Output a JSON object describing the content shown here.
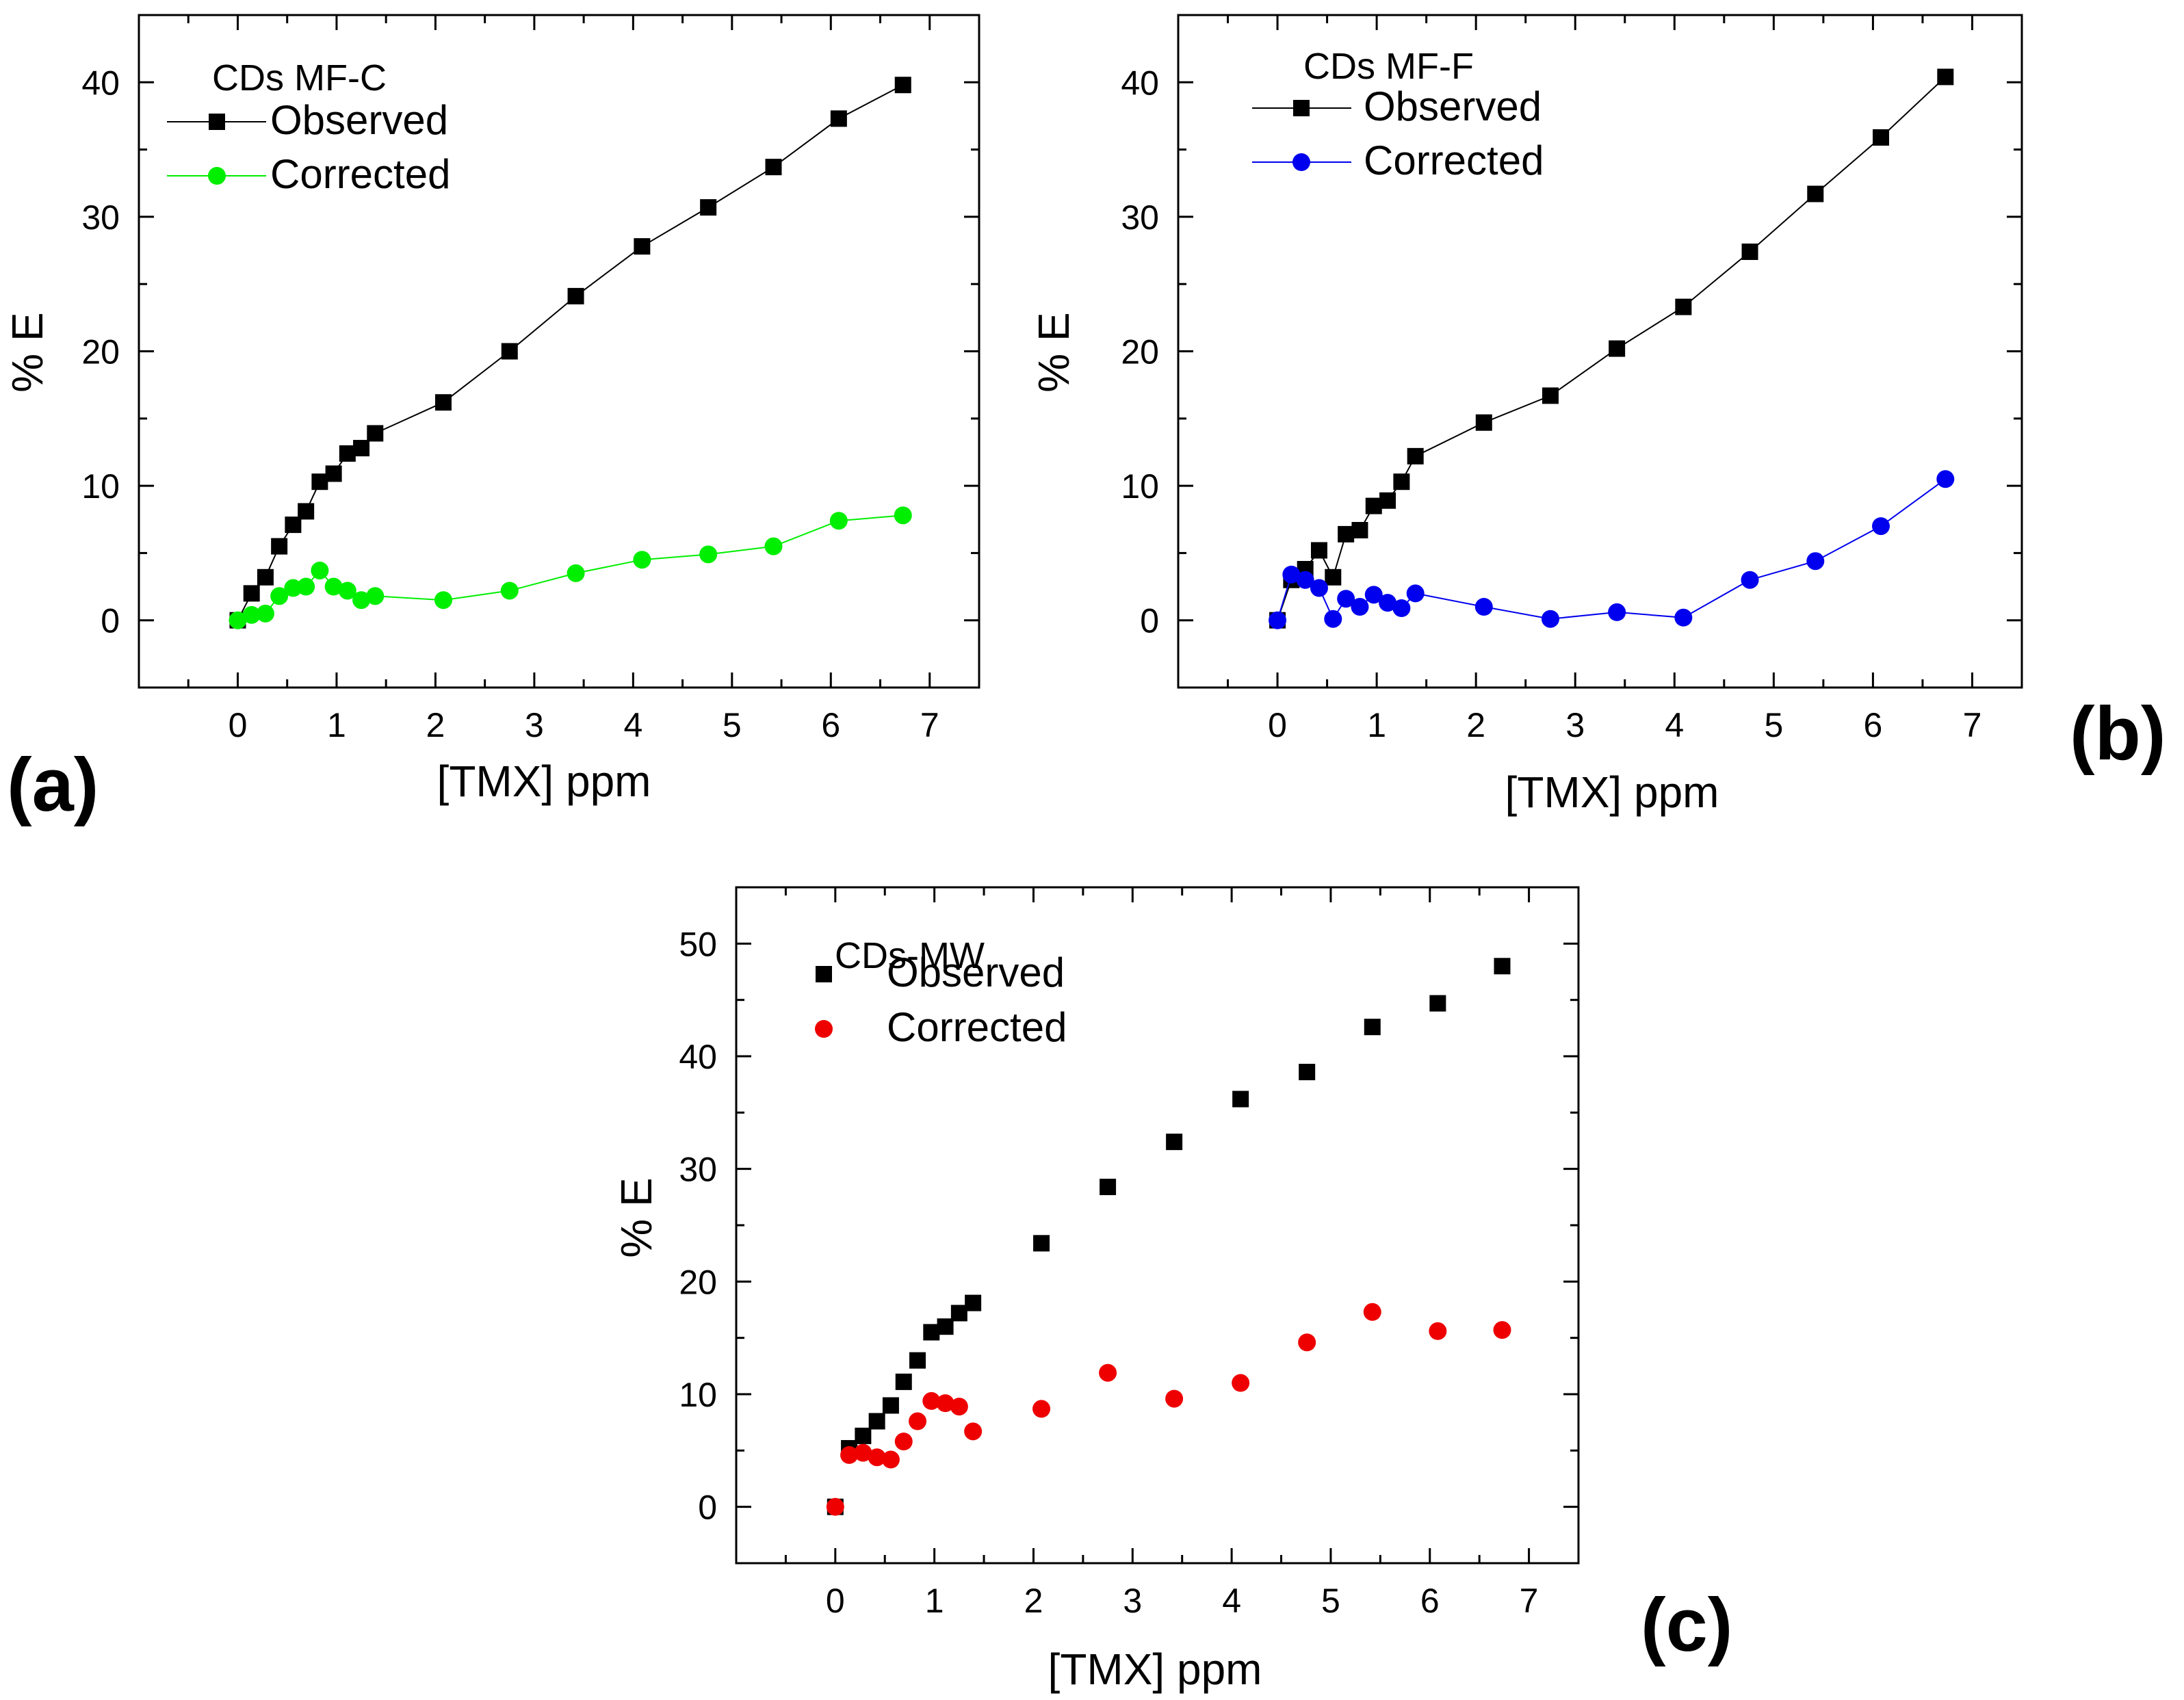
{
  "chart_data": [
    {
      "panel": "(a)",
      "type": "line",
      "legend_title": "CDs MF-C",
      "xlabel": "[TMX] ppm",
      "ylabel": "% E",
      "xlim": [
        -1,
        7.5
      ],
      "ylim": [
        -5,
        45
      ],
      "xticks": [
        0,
        1,
        2,
        3,
        4,
        5,
        6,
        7
      ],
      "yticks": [
        0,
        10,
        20,
        30,
        40
      ],
      "legend_position": "top-left",
      "series": [
        {
          "name": "Observed",
          "marker": "square",
          "color": "#000000",
          "line": true,
          "x": [
            0,
            0.14,
            0.28,
            0.42,
            0.56,
            0.69,
            0.83,
            0.97,
            1.11,
            1.25,
            1.39,
            2.08,
            2.75,
            3.42,
            4.09,
            4.76,
            5.42,
            6.08,
            6.73
          ],
          "y": [
            0,
            2.0,
            3.2,
            5.5,
            7.1,
            8.1,
            10.3,
            10.9,
            12.4,
            12.8,
            13.9,
            16.2,
            20.0,
            24.1,
            27.8,
            30.7,
            33.7,
            37.3,
            39.8
          ]
        },
        {
          "name": "Corrected",
          "marker": "circle",
          "color": "#00ee00",
          "line": true,
          "x": [
            0,
            0.14,
            0.28,
            0.42,
            0.56,
            0.69,
            0.83,
            0.97,
            1.11,
            1.25,
            1.39,
            2.08,
            2.75,
            3.42,
            4.09,
            4.76,
            5.42,
            6.08,
            6.73
          ],
          "y": [
            0,
            0.4,
            0.5,
            1.8,
            2.4,
            2.5,
            3.7,
            2.5,
            2.2,
            1.5,
            1.8,
            1.5,
            2.2,
            3.5,
            4.5,
            4.9,
            5.5,
            7.4,
            7.8
          ]
        }
      ]
    },
    {
      "panel": "(b)",
      "type": "line",
      "legend_title": "CDs MF-F",
      "xlabel": "[TMX] ppm",
      "ylabel": "% E",
      "xlim": [
        -1,
        7.5
      ],
      "ylim": [
        -5,
        45
      ],
      "xticks": [
        0,
        1,
        2,
        3,
        4,
        5,
        6,
        7
      ],
      "yticks": [
        0,
        10,
        20,
        30,
        40
      ],
      "legend_position": "top-left",
      "series": [
        {
          "name": "Observed",
          "marker": "square",
          "color": "#000000",
          "line": true,
          "x": [
            0,
            0.14,
            0.28,
            0.42,
            0.56,
            0.69,
            0.83,
            0.97,
            1.11,
            1.25,
            1.39,
            2.08,
            2.75,
            3.42,
            4.09,
            4.76,
            5.42,
            6.08,
            6.73
          ],
          "y": [
            0,
            3.0,
            3.8,
            5.2,
            3.2,
            6.4,
            6.7,
            8.5,
            8.9,
            10.3,
            12.2,
            14.7,
            16.7,
            20.2,
            23.3,
            27.4,
            31.7,
            35.9,
            40.4
          ]
        },
        {
          "name": "Corrected",
          "marker": "circle",
          "color": "#0000ee",
          "line": true,
          "x": [
            0,
            0.14,
            0.28,
            0.42,
            0.56,
            0.69,
            0.83,
            0.97,
            1.11,
            1.25,
            1.39,
            2.08,
            2.75,
            3.42,
            4.09,
            4.76,
            5.42,
            6.08,
            6.73
          ],
          "y": [
            0,
            3.4,
            3.0,
            2.4,
            0.1,
            1.6,
            1.0,
            1.9,
            1.3,
            0.9,
            2.0,
            1.0,
            0.1,
            0.6,
            0.2,
            3.0,
            4.4,
            7.0,
            10.5
          ]
        }
      ]
    },
    {
      "panel": "(c)",
      "type": "scatter",
      "legend_title": "CDs-MW",
      "xlabel": "[TMX] ppm",
      "ylabel": "% E",
      "xlim": [
        -1,
        7.5
      ],
      "ylim": [
        -5,
        55
      ],
      "xticks": [
        0,
        1,
        2,
        3,
        4,
        5,
        6,
        7
      ],
      "yticks": [
        0,
        10,
        20,
        30,
        40,
        50
      ],
      "legend_position": "top-left",
      "series": [
        {
          "name": "Observed",
          "marker": "square",
          "color": "#000000",
          "line": false,
          "x": [
            0,
            0.14,
            0.28,
            0.42,
            0.56,
            0.69,
            0.83,
            0.97,
            1.11,
            1.25,
            1.39,
            2.08,
            2.75,
            3.42,
            4.09,
            4.76,
            5.42,
            6.08,
            6.73
          ],
          "y": [
            0,
            5.2,
            6.3,
            7.6,
            9.0,
            11.1,
            13.0,
            15.5,
            16.0,
            17.2,
            18.1,
            23.4,
            28.4,
            32.4,
            36.2,
            38.6,
            42.6,
            44.7,
            48.0
          ]
        },
        {
          "name": "Corrected",
          "marker": "circle",
          "color": "#ee0000",
          "line": false,
          "x": [
            0,
            0.14,
            0.28,
            0.42,
            0.56,
            0.69,
            0.83,
            0.97,
            1.11,
            1.25,
            1.39,
            2.08,
            2.75,
            3.42,
            4.09,
            4.76,
            5.42,
            6.08,
            6.73
          ],
          "y": [
            0,
            4.6,
            4.8,
            4.4,
            4.2,
            5.8,
            7.6,
            9.4,
            9.2,
            8.9,
            6.7,
            8.7,
            11.9,
            9.6,
            11.0,
            14.6,
            17.3,
            15.6,
            15.7
          ]
        }
      ]
    }
  ]
}
